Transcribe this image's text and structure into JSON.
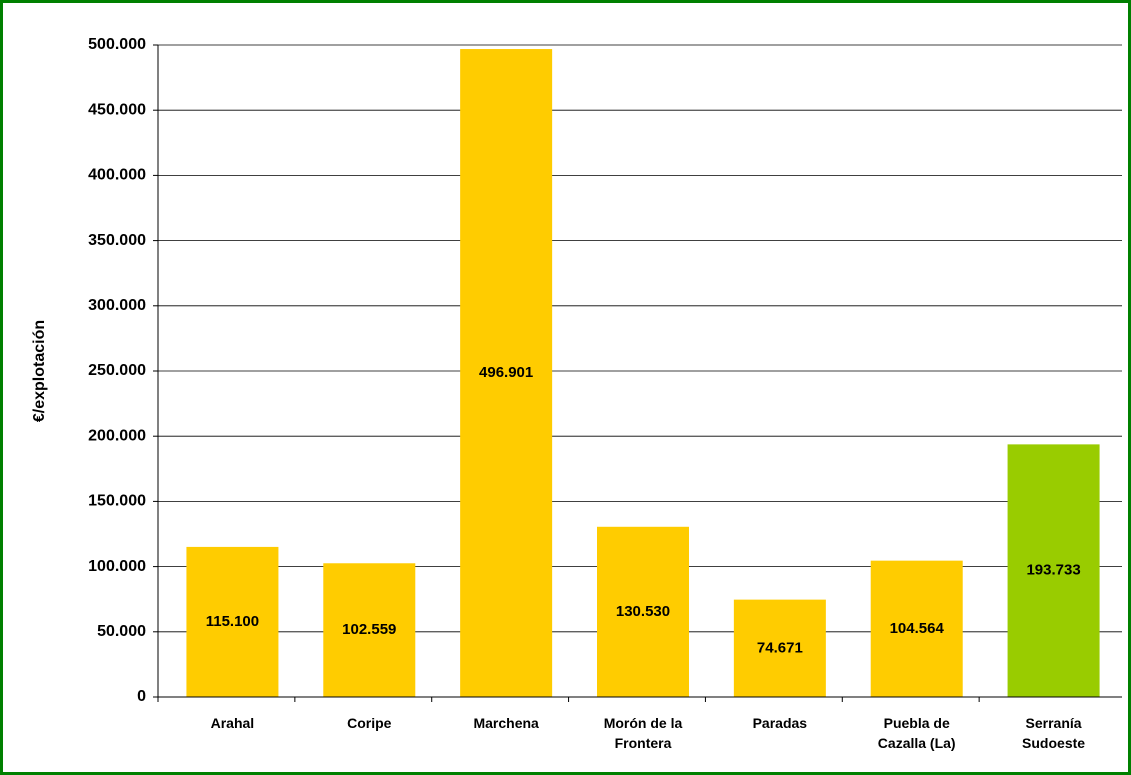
{
  "chart_data": {
    "type": "bar",
    "y_label": "€/explotación",
    "categories": [
      "Arahal",
      "Coripe",
      "Marchena",
      "Morón de la Frontera",
      "Paradas",
      "Puebla de Cazalla (La)",
      "Serranía Sudoeste"
    ],
    "values": [
      115100,
      102559,
      496901,
      130530,
      74671,
      104564,
      193733
    ],
    "value_labels": [
      "115.100",
      "102.559",
      "496.901",
      "130.530",
      "74.671",
      "104.564",
      "193.733"
    ],
    "colors": [
      "#ffcc00",
      "#ffcc00",
      "#ffcc00",
      "#ffcc00",
      "#ffcc00",
      "#ffcc00",
      "#99cc00"
    ],
    "ylim": [
      0,
      500000
    ],
    "yticks": [
      0,
      {
        "value": 50000,
        "label": "50.000"
      },
      {
        "value": 100000,
        "label": "100.000"
      },
      {
        "value": 150000,
        "label": "150.000"
      },
      {
        "value": 200000,
        "label": "200.000"
      },
      {
        "value": 250000,
        "label": "250.000"
      },
      {
        "value": 300000,
        "label": "300.000"
      },
      {
        "value": 350000,
        "label": "350.000"
      },
      {
        "value": 400000,
        "label": "400.000"
      },
      {
        "value": 450000,
        "label": "450.000"
      },
      {
        "value": 500000,
        "label": "500.000"
      }
    ],
    "grid": true
  }
}
